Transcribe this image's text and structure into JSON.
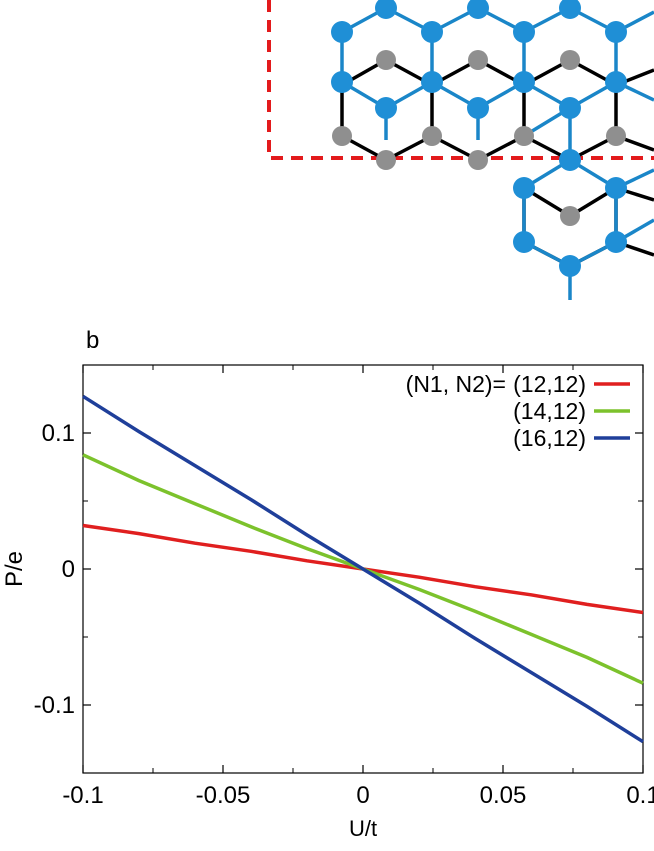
{
  "figure": {
    "panel_label": "b",
    "lattice_diagram": {
      "description_colors": {
        "blue_atom": "#1f8fd6",
        "blue_bond": "#1a86c8",
        "gray_atom": "#8f8f8f",
        "black_bond": "#000000",
        "cell_outline": "#e31a1c"
      }
    }
  },
  "chart_data": {
    "type": "line",
    "title": "",
    "xlabel": "U/t",
    "ylabel": "P/e",
    "xlim": [
      -0.1,
      0.1
    ],
    "ylim": [
      -0.15,
      0.15
    ],
    "x_ticks": [
      -0.1,
      -0.05,
      0,
      0.05,
      0.1
    ],
    "x_tick_labels": [
      "-0.1",
      "-0.05",
      "0",
      "0.05",
      "0.1"
    ],
    "y_ticks": [
      -0.1,
      0,
      0.1
    ],
    "y_tick_labels": [
      "-0.1",
      "0",
      "0.1"
    ],
    "grid": false,
    "legend_position": "top-right",
    "legend_prefix": "(N1, N2)=",
    "series": [
      {
        "name": "(12,12)",
        "color": "#e01f1f",
        "x": [
          -0.1,
          -0.08,
          -0.06,
          -0.04,
          -0.02,
          0,
          0.02,
          0.04,
          0.06,
          0.08,
          0.1
        ],
        "y": [
          0.032,
          0.026,
          0.019,
          0.013,
          0.006,
          0.0,
          -0.006,
          -0.013,
          -0.019,
          -0.026,
          -0.032
        ]
      },
      {
        "name": "(14,12)",
        "color": "#7cc22c",
        "x": [
          -0.1,
          -0.08,
          -0.06,
          -0.04,
          -0.02,
          0,
          0.02,
          0.04,
          0.06,
          0.08,
          0.1
        ],
        "y": [
          0.084,
          0.065,
          0.048,
          0.031,
          0.015,
          0.0,
          -0.015,
          -0.031,
          -0.048,
          -0.065,
          -0.084
        ]
      },
      {
        "name": "(16,12)",
        "color": "#1f3f9a",
        "x": [
          -0.1,
          -0.08,
          -0.06,
          -0.04,
          -0.02,
          0,
          0.02,
          0.04,
          0.06,
          0.08,
          0.1
        ],
        "y": [
          0.127,
          0.101,
          0.076,
          0.051,
          0.025,
          0.0,
          -0.025,
          -0.051,
          -0.076,
          -0.101,
          -0.127
        ]
      }
    ]
  }
}
